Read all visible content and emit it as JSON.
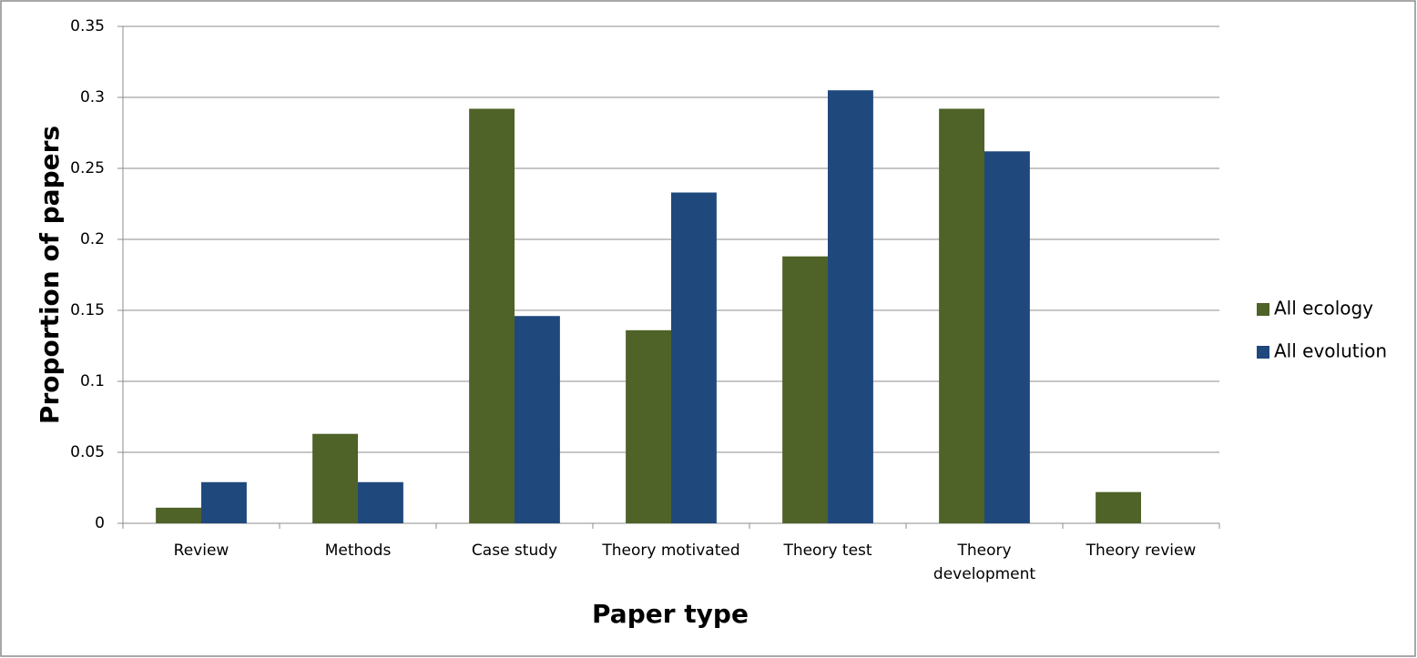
{
  "chart_data": {
    "type": "bar",
    "x_label": "Paper type",
    "y_label": "Proportion of papers",
    "categories": [
      "Review",
      "Methods",
      "Case study",
      "Theory motivated",
      "Theory test",
      "Theory development",
      "Theory review"
    ],
    "series": [
      {
        "name": "All ecology",
        "color": "#4f6228",
        "values": [
          0.011,
          0.063,
          0.292,
          0.136,
          0.188,
          0.292,
          0.022
        ]
      },
      {
        "name": "All evolution",
        "color": "#1f497d",
        "values": [
          0.029,
          0.029,
          0.146,
          0.233,
          0.305,
          0.262,
          0
        ]
      }
    ],
    "ylim": [
      0,
      0.35
    ],
    "yticks": [
      0,
      0.05,
      0.1,
      0.15,
      0.2,
      0.25,
      0.3,
      0.35
    ],
    "grid": true,
    "legend": "right"
  }
}
